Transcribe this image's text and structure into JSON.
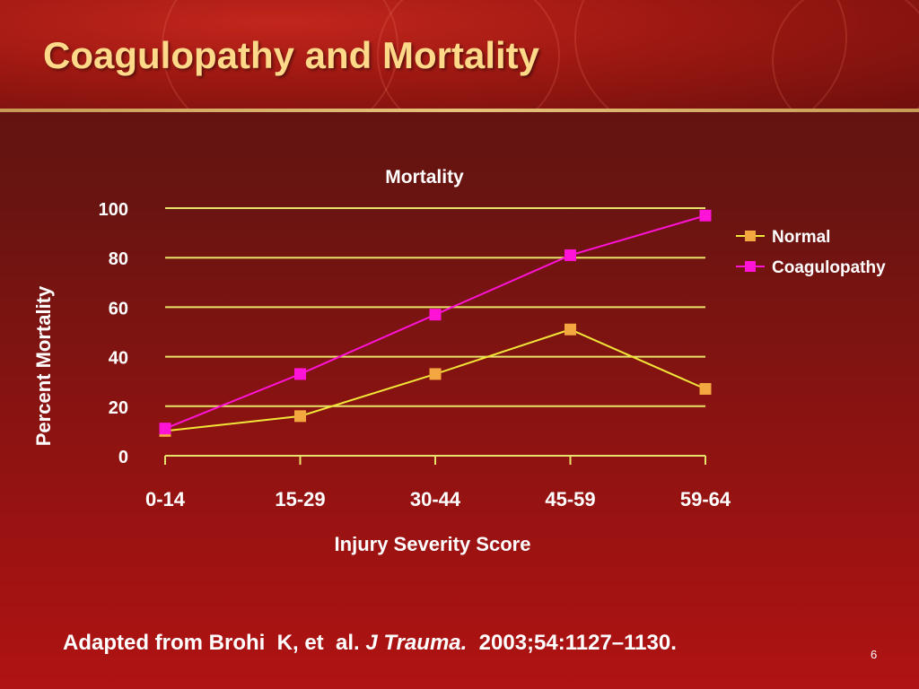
{
  "slide": {
    "title": "Coagulopathy and Mortality",
    "citation_prefix": "Adapted from Brohi  K, et  al. ",
    "citation_journal": "J Trauma.",
    "citation_suffix": "  2003;54:1127–1130.",
    "slide_number": "6"
  },
  "colors": {
    "title": "#ffd98a",
    "gridlines": "#e9e26a",
    "normal_line": "#f2e638",
    "normal_marker": "#f4a640",
    "coagulopathy": "#ff13d6"
  },
  "chart_data": {
    "type": "line",
    "title": "Mortality",
    "xlabel": "Injury  Severity Score",
    "ylabel": "Percent Mortality",
    "categories": [
      "0-14",
      "15-29",
      "30-44",
      "45-59",
      "59-64"
    ],
    "ylim": [
      0,
      100
    ],
    "yticks": [
      0,
      20,
      40,
      60,
      80,
      100
    ],
    "grid": true,
    "legend_position": "right",
    "series": [
      {
        "name": "Normal",
        "values": [
          10,
          16,
          33,
          51,
          27
        ]
      },
      {
        "name": "Coagulopathy",
        "values": [
          11,
          33,
          57,
          81,
          97
        ]
      }
    ]
  }
}
